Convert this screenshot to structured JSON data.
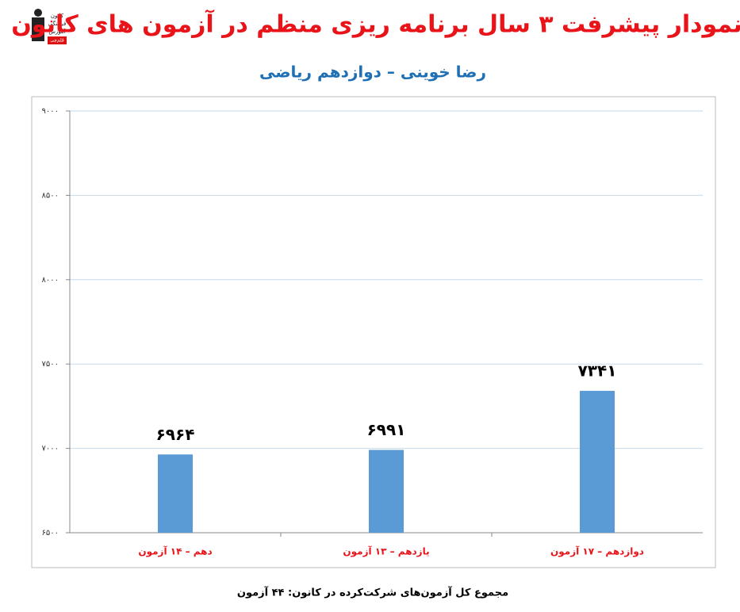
{
  "logo": [
    "کانون",
    "فرهنگی",
    "آموزش",
    "قلم‌چی"
  ],
  "chart_data": {
    "type": "bar",
    "title": "نمودار پیشرفت ۳ سال برنامه ریزی منظم در آزمون های کانون",
    "subtitle": "رضا خوینی – دوازدهم ریاضی",
    "annotation": "مجموع کل آزمون‌های شرکت‌کرده در کانون: ۴۴ آزمون",
    "categories": [
      "دهم – ۱۴ آزمون",
      "یازدهم – ۱۳ آزمون",
      "دوازدهم – ۱۷ آزمون"
    ],
    "values": [
      6964,
      6991,
      7341
    ],
    "value_labels": [
      "۶۹۶۴",
      "۶۹۹۱",
      "۷۳۴۱"
    ],
    "color": "#5b9bd5",
    "ylim": [
      6500,
      9000
    ],
    "yticks": [
      {
        "value": 6500,
        "label": "۶۵۰۰"
      },
      {
        "value": 7000,
        "label": "۷۰۰۰"
      },
      {
        "value": 7500,
        "label": "۷۵۰۰"
      },
      {
        "value": 8000,
        "label": "۸۰۰۰"
      },
      {
        "value": 8500,
        "label": "۸۵۰۰"
      },
      {
        "value": 9000,
        "label": "۹۰۰۰"
      }
    ],
    "grid": true
  }
}
